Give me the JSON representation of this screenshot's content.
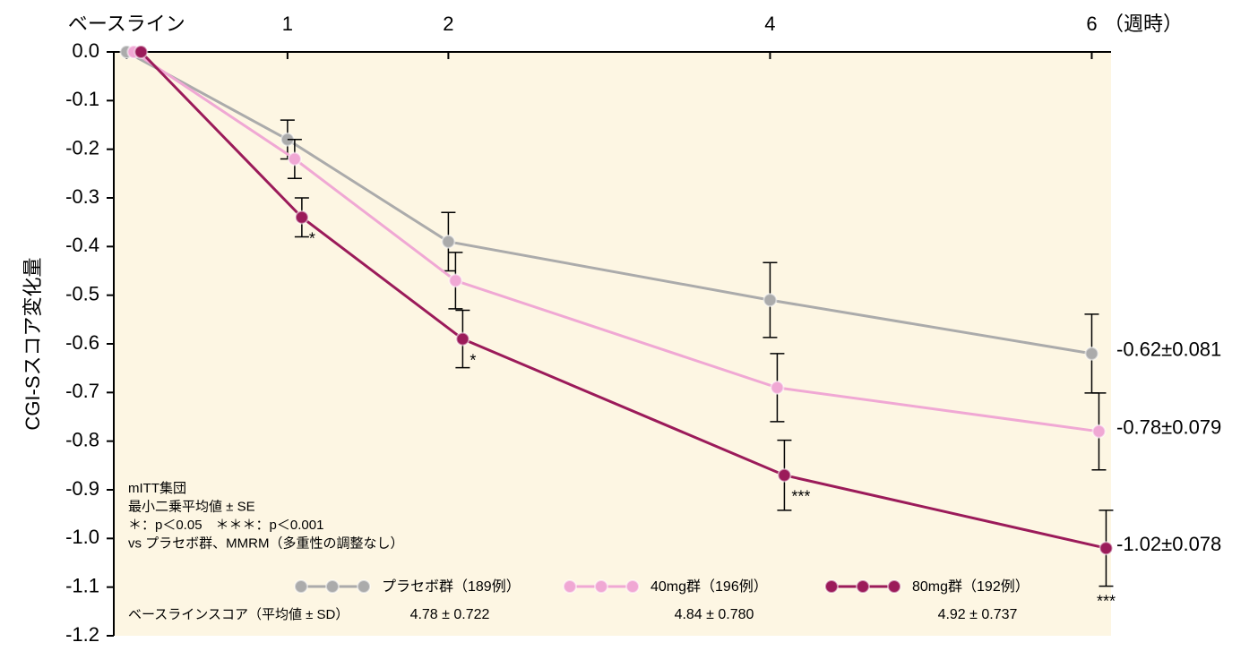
{
  "chart_data": {
    "type": "line",
    "y_label": "CGI-Sスコア変化量",
    "x_unit_label": "（週時）",
    "x": [
      0,
      1,
      2,
      4,
      6
    ],
    "xlim": [
      -0.08,
      6.12
    ],
    "xticks": [
      {
        "value": 0,
        "label": "ベースライン"
      },
      1,
      2,
      4,
      6
    ],
    "ylim": [
      -1.2,
      0
    ],
    "yticks": [
      {
        "value": 0,
        "label": "0.0"
      },
      -0.1,
      -0.2,
      -0.3,
      -0.4,
      -0.5,
      -0.6,
      -0.7,
      -0.8,
      -0.9,
      {
        "value": -1,
        "label": "-1.0"
      },
      -1.1,
      -1.2
    ],
    "background": "#fdf6e3",
    "series": [
      {
        "name": "プラセボ群（189例）",
        "color": "#ababab",
        "values": [
          0,
          -0.18,
          -0.39,
          -0.51,
          -0.62
        ],
        "errors": [
          null,
          0.04,
          0.06,
          0.077,
          0.081
        ],
        "end_label": "-0.62±0.081",
        "significance": [
          null,
          null,
          null,
          null,
          null
        ],
        "baseline_score": "4.78 ± 0.722"
      },
      {
        "name": "40mg群（196例）",
        "color": "#f0a8d4",
        "values": [
          0,
          -0.22,
          -0.47,
          -0.69,
          -0.78
        ],
        "errors": [
          null,
          0.04,
          0.058,
          0.07,
          0.079
        ],
        "end_label": "-0.78±0.079",
        "significance": [
          null,
          null,
          null,
          null,
          null
        ],
        "baseline_score": "4.84 ± 0.780"
      },
      {
        "name": "80mg群（192例）",
        "color": "#9b1b5a",
        "values": [
          0,
          -0.34,
          -0.59,
          -0.87,
          -1.02
        ],
        "errors": [
          null,
          0.04,
          0.059,
          0.072,
          0.078
        ],
        "end_label": "-1.02±0.078",
        "significance": [
          null,
          "*",
          "*",
          "***",
          "***"
        ],
        "baseline_score": "4.92 ± 0.737"
      }
    ],
    "baseline_score_label": "ベースラインスコア（平均値 ± SD）",
    "notes": [
      "mITT集団",
      "最小二乗平均値 ± SE",
      "＊：p＜0.05　＊＊＊：p＜0.001",
      "vs プラセボ群、MMRM（多重性の調整なし）"
    ]
  }
}
